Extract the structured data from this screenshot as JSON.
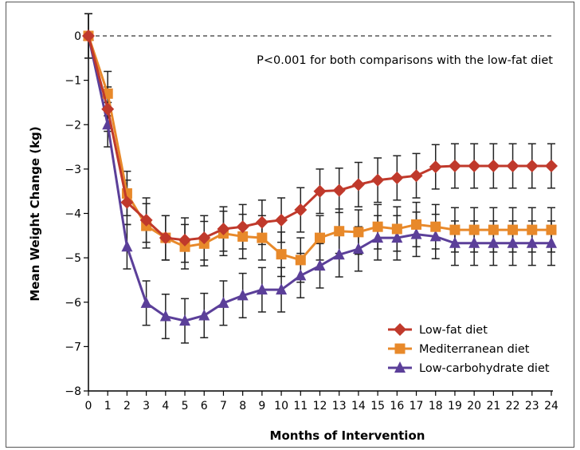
{
  "chart_data": {
    "type": "line",
    "title": "",
    "xlabel": "Months of Intervention",
    "ylabel": "Mean Weight Change (kg)",
    "xlim": [
      0,
      24
    ],
    "ylim": [
      -8,
      0
    ],
    "x": [
      0,
      1,
      2,
      3,
      4,
      5,
      6,
      7,
      8,
      9,
      10,
      11,
      12,
      13,
      14,
      15,
      16,
      17,
      18,
      19,
      20,
      21,
      22,
      23,
      24
    ],
    "xticks": [
      "0",
      "1",
      "2",
      "3",
      "4",
      "5",
      "6",
      "7",
      "8",
      "9",
      "10",
      "11",
      "12",
      "13",
      "14",
      "15",
      "16",
      "17",
      "18",
      "19",
      "20",
      "21",
      "22",
      "23",
      "24"
    ],
    "yticks": [
      0,
      -1,
      -2,
      -3,
      -4,
      -5,
      -6,
      -7,
      -8
    ],
    "ytick_labels": [
      "0",
      "−1",
      "−2",
      "−3",
      "−4",
      "−5",
      "−6",
      "−7",
      "−8"
    ],
    "error_bar_halfwidth": 0.5,
    "annotation": "P<0.001 for both comparisons with the low-fat diet",
    "legend_position": "bottom-right",
    "series": [
      {
        "name": "Low-fat diet",
        "color": "#C0392B",
        "marker": "diamond",
        "values": [
          0,
          -1.65,
          -3.75,
          -4.15,
          -4.55,
          -4.6,
          -4.55,
          -4.35,
          -4.3,
          -4.2,
          -4.15,
          -3.92,
          -3.5,
          -3.48,
          -3.35,
          -3.25,
          -3.2,
          -3.15,
          -2.95,
          -2.93,
          -2.93,
          -2.93,
          -2.93,
          -2.93,
          -2.93
        ]
      },
      {
        "name": "Mediterranean diet",
        "color": "#E8892A",
        "marker": "square",
        "values": [
          0,
          -1.3,
          -3.55,
          -4.28,
          -4.55,
          -4.75,
          -4.68,
          -4.45,
          -4.52,
          -4.55,
          -4.92,
          -5.05,
          -4.55,
          -4.4,
          -4.42,
          -4.3,
          -4.35,
          -4.25,
          -4.3,
          -4.37,
          -4.37,
          -4.37,
          -4.37,
          -4.37,
          -4.37
        ]
      },
      {
        "name": "Low-carbohydrate diet",
        "color": "#5B3F99",
        "marker": "triangle",
        "values": [
          0,
          -2.0,
          -4.75,
          -6.02,
          -6.32,
          -6.42,
          -6.3,
          -6.02,
          -5.85,
          -5.72,
          -5.72,
          -5.4,
          -5.18,
          -4.93,
          -4.8,
          -4.55,
          -4.55,
          -4.47,
          -4.52,
          -4.67,
          -4.67,
          -4.67,
          -4.67,
          -4.67,
          -4.67
        ]
      }
    ]
  }
}
